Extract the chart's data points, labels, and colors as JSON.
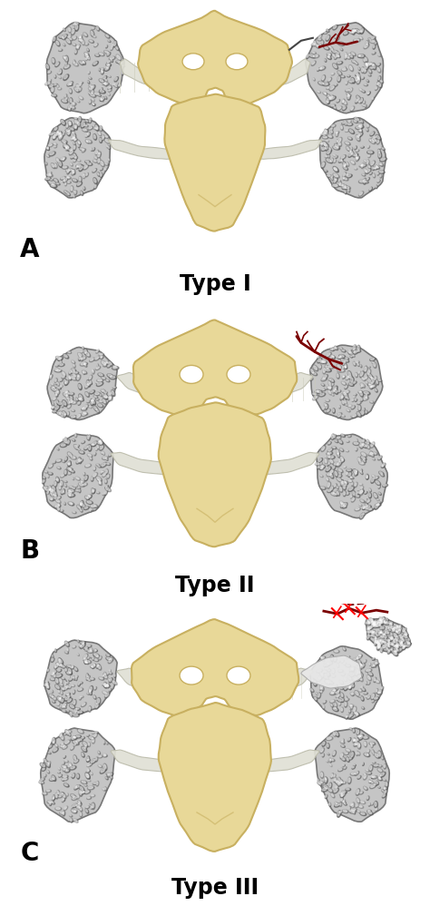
{
  "panel_labels": [
    "A",
    "B",
    "C"
  ],
  "type_labels": [
    "Type I",
    "Type II",
    "Type III"
  ],
  "background_color": "#ffffff",
  "bone_color": "#e8d898",
  "bone_edge_color": "#c8b060",
  "cancel_fill": "#b8b8b8",
  "cancel_edge": "#888888",
  "artery_color": "#7a0000",
  "label_fontsize": 20,
  "type_fontsize": 17
}
